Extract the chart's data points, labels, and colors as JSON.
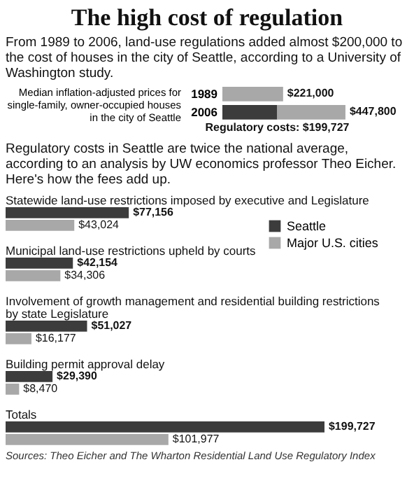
{
  "chart_data": [
    {
      "type": "bar",
      "orientation": "horizontal",
      "stacked": true,
      "title": "The high cost of regulation",
      "subtitle": "From 1989 to 2006, land-use regulations added almost $200,000 to the cost of houses in the city of Seattle, according to a University of Washington study.",
      "ylabel": "Median inflation-adjusted prices for single-family, owner-occupied houses in the city of Seattle",
      "categories": [
        "1989",
        "2006"
      ],
      "series": [
        {
          "color": "#3c3c3c",
          "values": [
            null,
            199727
          ],
          "value_labels": [
            null,
            "Regulatory costs: $199,727"
          ]
        },
        {
          "color": "#a8a8a8",
          "values": [
            221000,
            248073
          ]
        }
      ],
      "totals": [
        "$221,000",
        "$447,800"
      ]
    },
    {
      "type": "bar",
      "orientation": "horizontal",
      "subtitle": "Regulatory costs in Seattle are twice the national average, according to an analysis by UW economics professor Theo Eicher. Here's how the fees add up.",
      "categories": [
        "Statewide land-use restrictions imposed by executive and Legislature",
        "Municipal land-use restrictions upheld by courts",
        "Involvement of growth management and residential building restrictions by state Legislature",
        "Building permit approval delay",
        "Totals"
      ],
      "series": [
        {
          "name": "Seattle",
          "color": "#3c3c3c",
          "values": [
            77156,
            42154,
            51027,
            29390,
            199727
          ],
          "value_labels": [
            "$77,156",
            "$42,154",
            "$51,027",
            "$29,390",
            "$199,727"
          ]
        },
        {
          "name": "Major U.S. cities",
          "color": "#a8a8a8",
          "values": [
            43024,
            34306,
            16177,
            8470,
            101977
          ],
          "value_labels": [
            "$43,024",
            "$34,306",
            "$16,177",
            "$8,470",
            "$101,977"
          ]
        }
      ],
      "legend": "right",
      "annotations": [
        "Sources: Theo Eicher and The Wharton Residential Land Use Regulatory Index"
      ]
    }
  ]
}
